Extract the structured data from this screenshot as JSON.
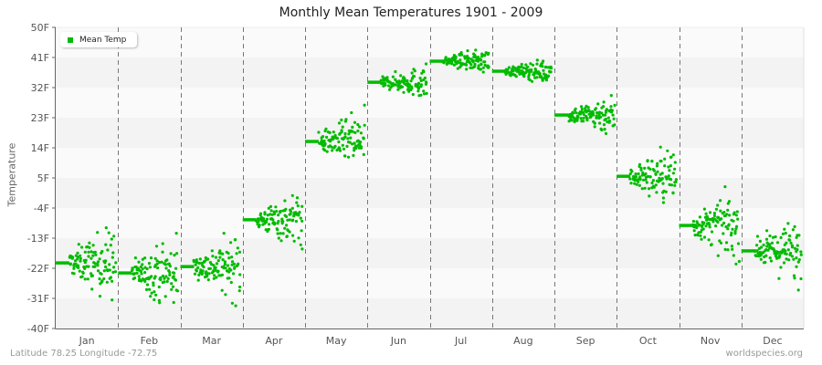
{
  "title": "Monthly Mean Temperatures 1901 - 2009",
  "footer": {
    "left": "Latitude 78.25 Longitude -72.75",
    "right": "worldspecies.org"
  },
  "legend": {
    "label": "Mean Temp",
    "color": "#00bb00"
  },
  "chart_data": {
    "type": "scatter",
    "title": "Monthly Mean Temperatures 1901 - 2009",
    "xlabel": "",
    "ylabel": "Temperature",
    "ylim": [
      -40,
      50
    ],
    "yticks": [
      "50F",
      "41F",
      "32F",
      "23F",
      "14F",
      "5F",
      "-4F",
      "-13F",
      "-22F",
      "-31F",
      "-40F"
    ],
    "categories": [
      "Jan",
      "Feb",
      "Mar",
      "Apr",
      "May",
      "Jun",
      "Jul",
      "Aug",
      "Sep",
      "Oct",
      "Nov",
      "Dec"
    ],
    "series": [
      {
        "name": "Mean Temp",
        "color": "#00bb00",
        "monthly_mean": [
          -20.4,
          -23.4,
          -21.5,
          -7.5,
          15.9,
          33.6,
          39.9,
          36.9,
          23.8,
          5.5,
          -9.2,
          -16.8
        ],
        "spread": [
          9,
          9,
          8,
          7,
          7,
          4,
          3,
          3,
          5,
          8,
          8,
          8
        ],
        "points_per_month": 109
      }
    ],
    "grid": true,
    "legend_position": "top-left"
  },
  "colors": {
    "band_light": "#fafafa",
    "band_dark": "#f3f3f3",
    "point": "#00bb00",
    "axis": "#666666",
    "dashed": "#777777"
  }
}
